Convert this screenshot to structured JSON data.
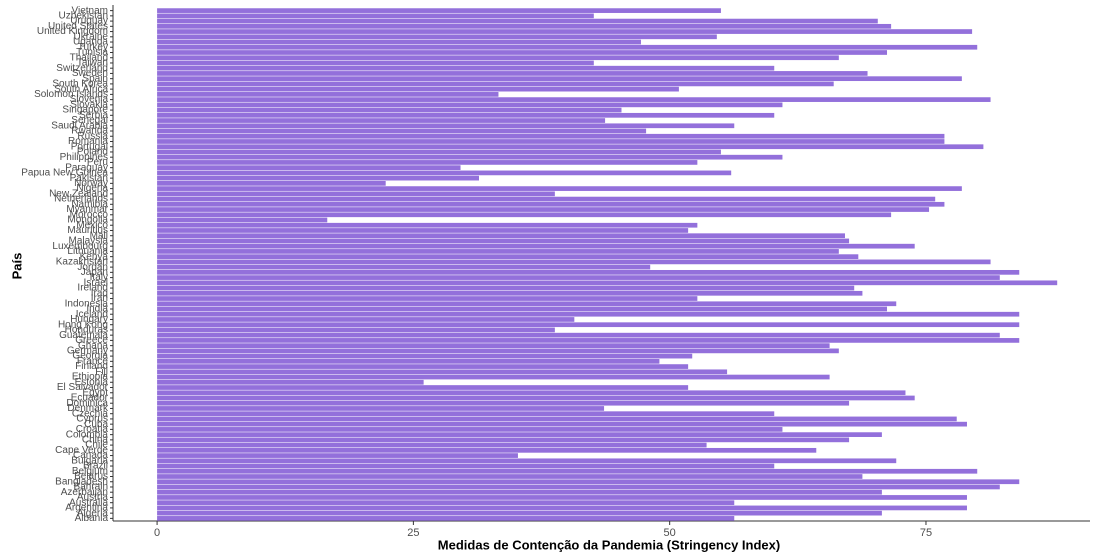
{
  "chart_data": {
    "type": "barh",
    "xlabel": "Medidas de Contenção da Pandemia (Stringency Index)",
    "ylabel": "País",
    "color": "#9370db",
    "grid": false,
    "categories": [
      "Albania",
      "Algeria",
      "Argentina",
      "Australia",
      "Austria",
      "Azerbaijan",
      "Bahrain",
      "Bangladesh",
      "Belarus",
      "Belgium",
      "Brazil",
      "Bulgaria",
      "Canada",
      "Cape Verde",
      "Chile",
      "China",
      "Colombia",
      "Croatia",
      "Cuba",
      "Cyprus",
      "Czechia",
      "Denmark",
      "Dominica",
      "Ecuador",
      "Egypt",
      "El Salvador",
      "Estonia",
      "Ethiopia",
      "Fiji",
      "Finland",
      "France",
      "Georgia",
      "Germany",
      "Ghana",
      "Greece",
      "Guatemala",
      "Honduras",
      "Hong Kong",
      "Hungary",
      "Iceland",
      "India",
      "Indonesia",
      "Iran",
      "Iraq",
      "Ireland",
      "Israel",
      "Italy",
      "Japan",
      "Jordan",
      "Kazakhstan",
      "Kenya",
      "Lithuania",
      "Luxembourg",
      "Malaysia",
      "Mali",
      "Mauritius",
      "Mexico",
      "Mongolia",
      "Morocco",
      "Myanmar",
      "Namibia",
      "Netherlands",
      "New Zealand",
      "Nigeria",
      "Norway",
      "Pakistan",
      "Papua New Guinea",
      "Paraguay",
      "Peru",
      "Philippines",
      "Poland",
      "Portugal",
      "Romania",
      "Russia",
      "Rwanda",
      "Saudi Arabia",
      "Senegal",
      "Serbia",
      "Singapore",
      "Slovakia",
      "Slovenia",
      "Solomon Islands",
      "South Africa",
      "South Korea",
      "Spain",
      "Sweden",
      "Switzerland",
      "Taiwan",
      "Thailand",
      "Tunisia",
      "Turkey",
      "Uganda",
      "Ukraine",
      "United Kingdom",
      "United States",
      "Uruguay",
      "Uzbekistan",
      "Vietnam"
    ],
    "values": [
      56.3,
      70.7,
      79.0,
      56.3,
      79.0,
      70.7,
      82.2,
      84.1,
      68.8,
      80.0,
      60.2,
      72.1,
      35.2,
      64.3,
      53.6,
      67.5,
      70.7,
      61.0,
      79.0,
      78.0,
      60.2,
      43.6,
      67.5,
      73.9,
      73.0,
      51.8,
      26.0,
      65.6,
      55.6,
      51.8,
      49.0,
      52.2,
      66.5,
      65.6,
      84.1,
      82.2,
      38.8,
      84.1,
      40.7,
      84.1,
      71.2,
      72.1,
      52.7,
      68.8,
      68.0,
      87.8,
      82.2,
      84.1,
      48.1,
      81.3,
      68.4,
      66.5,
      73.9,
      67.5,
      67.1,
      51.8,
      52.7,
      16.6,
      71.6,
      75.3,
      76.8,
      75.9,
      38.8,
      78.5,
      22.3,
      31.4,
      56.0,
      29.6,
      52.7,
      61.0,
      55.0,
      80.6,
      76.8,
      76.8,
      47.7,
      56.3,
      43.7,
      60.2,
      45.3,
      61.0,
      81.3,
      33.3,
      50.9,
      66.0,
      78.5,
      69.3,
      60.2,
      42.6,
      66.5,
      71.2,
      80.0,
      47.2,
      54.6,
      79.5,
      71.6,
      70.3,
      42.6,
      55.0
    ],
    "xlim": [
      -4.3,
      91
    ],
    "xticks": [
      0,
      25,
      50,
      75
    ]
  }
}
